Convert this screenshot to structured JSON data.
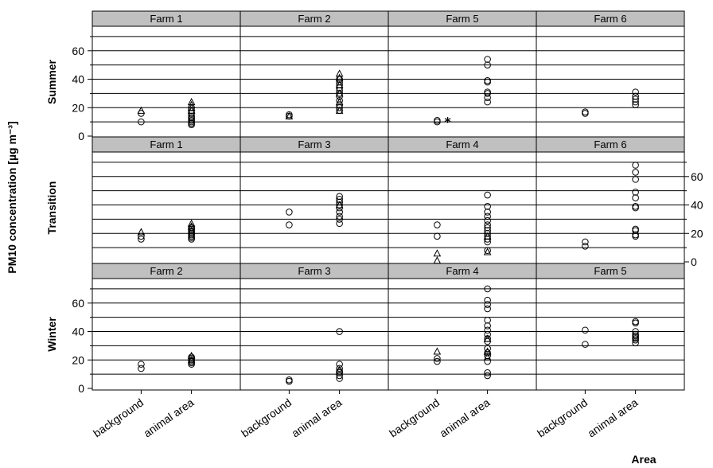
{
  "chart_data": {
    "type": "scatter",
    "ylabel": "PM10 concentration [µg m⁻³]",
    "xlabel": "Area",
    "categories": [
      "background",
      "animal area"
    ],
    "ylim": [
      0,
      75
    ],
    "yticks": [
      0,
      20,
      40,
      60
    ],
    "rows": [
      {
        "label": "Summer",
        "axis_side": "left",
        "panels": [
          {
            "strip": "Farm 1",
            "circles": {
              "background": [
                10,
                16
              ],
              "animal area": [
                8,
                9,
                10,
                11,
                12,
                13,
                14,
                16,
                18,
                20
              ]
            },
            "triangles": {
              "background": [
                18
              ],
              "animal area": [
                18,
                20,
                22,
                24
              ]
            },
            "stars": {
              "background": [],
              "animal area": []
            }
          },
          {
            "strip": "Farm 2",
            "circles": {
              "background": [
                14,
                15
              ],
              "animal area": [
                18,
                20,
                22,
                25,
                28,
                30,
                32,
                34,
                36,
                38,
                40
              ]
            },
            "triangles": {
              "background": [
                14
              ],
              "animal area": [
                18,
                24,
                30,
                36,
                41,
                44
              ]
            },
            "stars": {
              "background": [],
              "animal area": []
            }
          },
          {
            "strip": "Farm 5",
            "circles": {
              "background": [
                10
              ],
              "animal area": [
                24,
                27,
                30,
                31,
                38,
                39,
                50,
                54
              ]
            },
            "triangles": {
              "background": [],
              "animal area": []
            },
            "stars": {
              "background": [
                11
              ],
              "animal area": []
            }
          },
          {
            "strip": "Farm 6",
            "circles": {
              "background": [
                16,
                17
              ],
              "animal area": [
                22,
                24,
                26,
                28,
                31
              ]
            },
            "triangles": {
              "background": [],
              "animal area": []
            },
            "stars": {
              "background": [],
              "animal area": []
            }
          }
        ]
      },
      {
        "label": "Transition",
        "axis_side": "right",
        "panels": [
          {
            "strip": "Farm 1",
            "circles": {
              "background": [
                16,
                18
              ],
              "animal area": [
                16,
                17,
                18,
                19,
                20,
                21,
                22,
                23,
                24
              ]
            },
            "triangles": {
              "background": [
                21
              ],
              "animal area": [
                22,
                25,
                27
              ]
            },
            "stars": {
              "background": [],
              "animal area": []
            }
          },
          {
            "strip": "Farm 3",
            "circles": {
              "background": [
                26,
                35
              ],
              "animal area": [
                27,
                30,
                32,
                35,
                38,
                40,
                42,
                44,
                46
              ]
            },
            "triangles": {
              "background": [],
              "animal area": [
                40
              ]
            },
            "stars": {
              "background": [],
              "animal area": []
            }
          },
          {
            "strip": "Farm 4",
            "circles": {
              "background": [
                18,
                26
              ],
              "animal area": [
                8,
                14,
                16,
                18,
                20,
                22,
                24,
                26,
                29,
                32,
                35,
                39,
                47
              ]
            },
            "triangles": {
              "background": [
                1,
                6
              ],
              "animal area": [
                7,
                18
              ]
            },
            "stars": {
              "background": [],
              "animal area": []
            }
          },
          {
            "strip": "Farm 6",
            "circles": {
              "background": [
                11,
                14
              ],
              "animal area": [
                18,
                19,
                22,
                23,
                38,
                39,
                45,
                49,
                58,
                63,
                68
              ]
            },
            "triangles": {
              "background": [],
              "animal area": []
            },
            "stars": {
              "background": [],
              "animal area": []
            }
          }
        ]
      },
      {
        "label": "Winter",
        "axis_side": "left",
        "panels": [
          {
            "strip": "Farm 2",
            "circles": {
              "background": [
                14,
                17
              ],
              "animal area": [
                17,
                18,
                19,
                20,
                21,
                22
              ]
            },
            "triangles": {
              "background": [],
              "animal area": [
                20,
                23
              ]
            },
            "stars": {
              "background": [],
              "animal area": []
            }
          },
          {
            "strip": "Farm 3",
            "circles": {
              "background": [
                5,
                6
              ],
              "animal area": [
                7,
                9,
                11,
                12,
                14,
                17,
                40
              ]
            },
            "triangles": {
              "background": [],
              "animal area": [
                13
              ]
            },
            "stars": {
              "background": [],
              "animal area": []
            }
          },
          {
            "strip": "Farm 4",
            "circles": {
              "background": [
                19,
                21
              ],
              "animal area": [
                9,
                11,
                19,
                23,
                25,
                28,
                33,
                35,
                38,
                41,
                44,
                48,
                56,
                59,
                62,
                70
              ]
            },
            "triangles": {
              "background": [
                26
              ],
              "animal area": [
                22,
                26,
                35
              ]
            },
            "stars": {
              "background": [],
              "animal area": []
            }
          },
          {
            "strip": "Farm 5",
            "circles": {
              "background": [
                31,
                41
              ],
              "animal area": [
                32,
                34,
                35,
                36,
                37,
                38,
                40,
                46,
                47
              ]
            },
            "triangles": {
              "background": [],
              "animal area": []
            },
            "stars": {
              "background": [],
              "animal area": []
            }
          }
        ]
      }
    ]
  }
}
